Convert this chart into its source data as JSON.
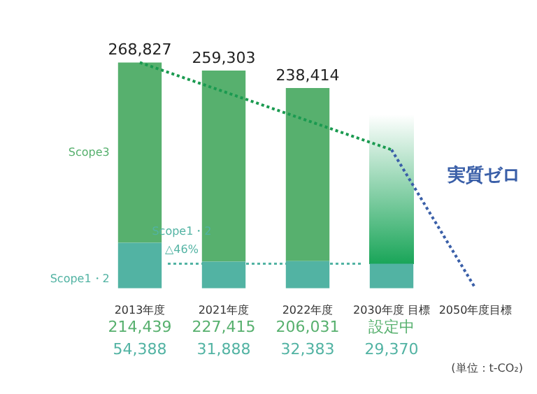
{
  "chart_data": {
    "type": "bar",
    "stacked": true,
    "legend": false,
    "categories": [
      "2013年度",
      "2021年度",
      "2022年度",
      "2030年度 目標",
      "2050年度目標"
    ],
    "series": [
      {
        "name": "Scope1・2",
        "color": "#52b3a3",
        "values": [
          54388,
          31888,
          32383,
          29370,
          null
        ],
        "value_labels": [
          "54,388",
          "31,888",
          "32,383",
          "29,370",
          null
        ]
      },
      {
        "name": "Scope3",
        "color": "#57b06e",
        "values": [
          214439,
          227415,
          206031,
          null,
          null
        ],
        "value_labels": [
          "214,439",
          "227,415",
          "206,031",
          "設定中",
          null
        ]
      },
      {
        "type": "line",
        "color": "#1a9a50",
        "line_style": "dotted",
        "marker": "none",
        "values": [
          268827,
          null,
          null,
          165000,
          null
        ]
      },
      {
        "type": "line",
        "color": "#3a5fa8",
        "line_style": "dotted",
        "marker": "none",
        "values": [
          null,
          null,
          null,
          165000,
          0
        ]
      }
    ],
    "totals": [
      "268,827",
      "259,303",
      "238,414",
      null,
      null
    ],
    "ref_lines": [
      {
        "axis": "y",
        "value": 29370,
        "label": "Scope1・2 △46%",
        "color": "#52b3a3",
        "line_style": "dotted"
      }
    ],
    "annotations": [
      "実質ゼロ",
      "(単位：t-CO₂)"
    ]
  }
}
